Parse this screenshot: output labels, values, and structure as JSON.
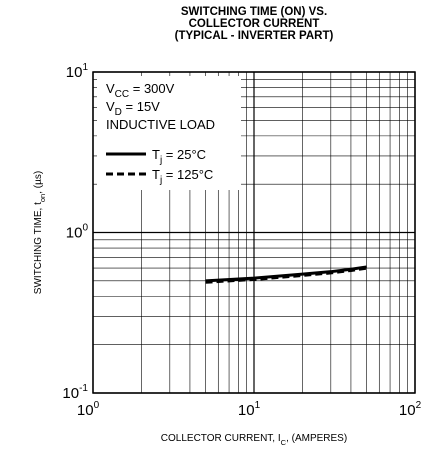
{
  "chart_data": {
    "type": "line",
    "title_lines": [
      "SWITCHING TIME (ON) VS.",
      "COLLECTOR CURRENT",
      "(TYPICAL - INVERTER PART)"
    ],
    "xlabel": {
      "base": "COLLECTOR CURRENT, I",
      "sub": "C",
      "tail": ", (AMPERES)"
    },
    "ylabel": {
      "base": "SWITCHING TIME, t",
      "sub": "on",
      "tail": ", (µs)"
    },
    "x_scale": "log",
    "y_scale": "log",
    "xlim": [
      1,
      100
    ],
    "ylim": [
      0.1,
      10
    ],
    "grid": true,
    "x_ticks": [
      {
        "base": "10",
        "exp": "0",
        "value": 1
      },
      {
        "base": "10",
        "exp": "1",
        "value": 10
      },
      {
        "base": "10",
        "exp": "2",
        "value": 100
      }
    ],
    "y_ticks": [
      {
        "base": "10",
        "exp": "-1",
        "value": 0.1
      },
      {
        "base": "10",
        "exp": "0",
        "value": 1
      },
      {
        "base": "10",
        "exp": "1",
        "value": 10
      }
    ],
    "conditions": [
      {
        "base": "V",
        "sub": "CC",
        "tail": " = 300V"
      },
      {
        "base": "V",
        "sub": "D",
        "tail": " = 15V"
      },
      {
        "base": "INDUCTIVE LOAD",
        "sub": "",
        "tail": ""
      }
    ],
    "series": [
      {
        "name": {
          "base": "T",
          "sub": "j",
          "tail": " = 25°C"
        },
        "style": "solid",
        "x": [
          5,
          10,
          20,
          30,
          40,
          50
        ],
        "y": [
          0.5,
          0.52,
          0.55,
          0.57,
          0.59,
          0.61
        ]
      },
      {
        "name": {
          "base": "T",
          "sub": "j",
          "tail": " = 125°C"
        },
        "style": "dashed",
        "x": [
          5,
          10,
          20,
          30,
          40,
          50
        ],
        "y": [
          0.49,
          0.51,
          0.54,
          0.56,
          0.58,
          0.6
        ]
      }
    ]
  }
}
